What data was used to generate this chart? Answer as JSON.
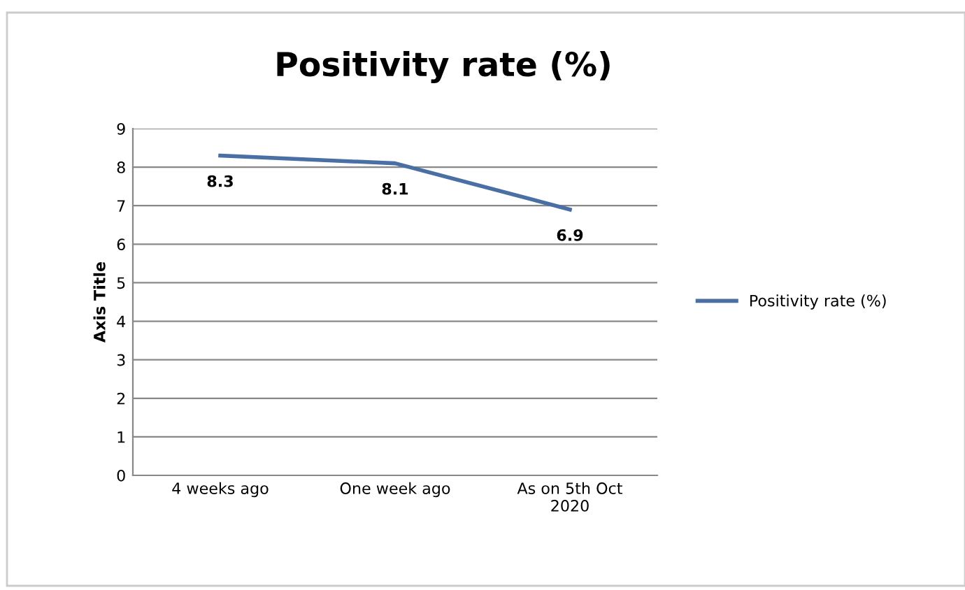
{
  "chart_data": {
    "type": "line",
    "title": "Positivity rate (%)",
    "ylabel": "Axis Title",
    "categories": [
      "4 weeks ago",
      "One week ago",
      "As on 5th Oct\n2020"
    ],
    "series": [
      {
        "name": "Positivity rate (%)",
        "color": "#4a6fa5",
        "values": [
          8.3,
          8.1,
          6.9
        ]
      }
    ],
    "ylim": [
      0,
      9
    ],
    "yticks": [
      0,
      1,
      2,
      3,
      4,
      5,
      6,
      7,
      8,
      9
    ],
    "grid": "y",
    "legend": "right",
    "data_labels": true,
    "marker": "none"
  }
}
